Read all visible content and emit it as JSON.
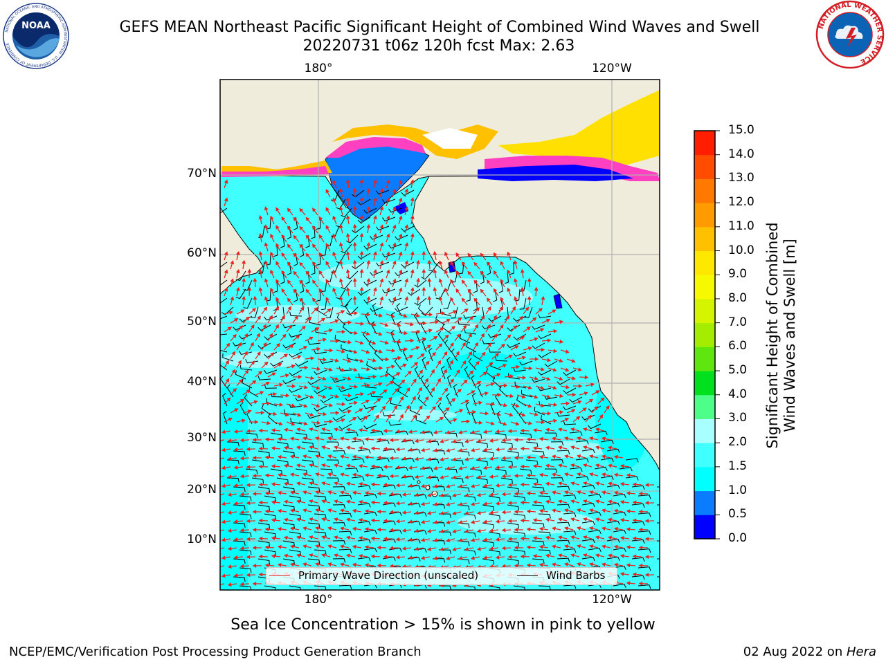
{
  "title": {
    "line1": "GEFS MEAN Northeast Pacific Significant Height of Combined Wind Waves and Swell",
    "line2": "20220731 t06z 120h fcst   Max: 2.63"
  },
  "logos": {
    "left": {
      "name": "NOAA",
      "text": "NOAA",
      "ring_text": "NATIONAL OCEANIC AND ATMOSPHERIC ADMINISTRATION · U.S. DEPARTMENT OF COMMERCE"
    },
    "right": {
      "name": "National Weather Service",
      "ring_text": "NATIONAL WEATHER SERVICE"
    }
  },
  "map": {
    "lon_labels_top": [
      "180°",
      "120°W"
    ],
    "lon_labels_bottom": [
      "180°",
      "120°W"
    ],
    "lat_labels": [
      "70°N",
      "60°N",
      "50°N",
      "40°N",
      "30°N",
      "20°N",
      "10°N"
    ],
    "land_color": "#efecdc",
    "grid_color": "#b0b0b0",
    "legend": {
      "wave_label": "Primary Wave Direction (unscaled)",
      "wave_color": "#e8231f",
      "wind_label": "Wind Barbs",
      "wind_color": "#000000"
    }
  },
  "colorbar": {
    "title_line1": "Significant Height of Combined",
    "title_line2": "Wind Waves and Swell [m]",
    "ticks": [
      "0.0",
      "0.5",
      "1.0",
      "1.5",
      "2.0",
      "3.0",
      "4.0",
      "5.0",
      "6.0",
      "7.0",
      "8.0",
      "9.0",
      "10.0",
      "11.0",
      "12.0",
      "13.0",
      "14.0",
      "15.0"
    ],
    "colors": [
      "#0000ff",
      "#0a7cff",
      "#00ffff",
      "#40ffff",
      "#a8ffff",
      "#4dff88",
      "#00e01e",
      "#5ee60e",
      "#a4ec00",
      "#d4f400",
      "#f7f900",
      "#ffe800",
      "#ffc000",
      "#ff9a00",
      "#ff7800",
      "#ff4c00",
      "#ff1e00"
    ]
  },
  "footnote": "Sea Ice Concentration > 15% is shown in pink to yellow",
  "credits": {
    "left": "NCEP/EMC/Verification Post Processing Product Generation Branch",
    "right_prefix": "02 Aug 2022 on ",
    "right_host": "Hera"
  }
}
